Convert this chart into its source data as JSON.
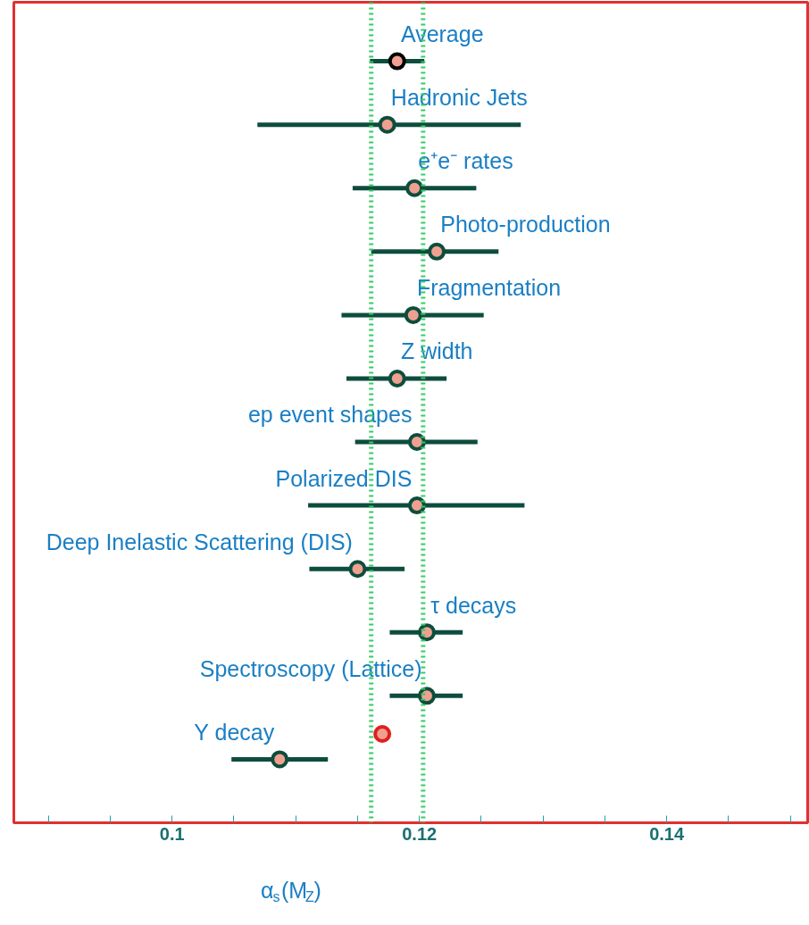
{
  "chart_data": {
    "type": "scatter",
    "orientation": "horizontal",
    "xlabel": "α$_{s}$(M$_{Z}$)",
    "categories": [
      "Average",
      "Hadronic Jets",
      "e⁺e⁻ rates",
      "Photo-production",
      "Fragmentation",
      "Z width",
      "ep event shapes",
      "Polarized DIS",
      "Deep Inelastic Scattering (DIS)",
      "τ decays",
      "Spectroscopy (Lattice)",
      "Υ decay"
    ],
    "series": [
      {
        "color": "#0d4d3d",
        "colors": [
          "#000000",
          "#0d4d3d",
          "#0d4d3d",
          "#0d4d3d",
          "#0d4d3d",
          "#0d4d3d",
          "#0d4d3d",
          "#0d4d3d",
          "#0d4d3d",
          "#0d4d3d",
          "#0d4d3d",
          "#0d4d3d"
        ],
        "values": [
          0.1182,
          0.1174,
          0.1196,
          0.1214,
          0.1195,
          0.1182,
          0.1198,
          0.1198,
          0.115,
          0.1206,
          0.1206,
          0.1087
        ],
        "errors": [
          0.0022,
          [
            0.1069,
            0.1282
          ],
          0.005,
          [
            0.1161,
            0.1264
          ],
          [
            0.1137,
            0.1252
          ],
          [
            0.1141,
            0.1222
          ],
          [
            0.1148,
            0.1247
          ],
          [
            0.111,
            0.1285
          ],
          [
            0.1111,
            0.1188
          ],
          [
            0.1176,
            0.1235
          ],
          [
            0.1176,
            0.1235
          ],
          [
            0.1048,
            0.1126
          ]
        ]
      },
      {
        "color": "#e02020",
        "values": [
          null,
          null,
          null,
          null,
          null,
          null,
          null,
          null,
          null,
          null,
          null,
          0.117
        ]
      }
    ],
    "xlim": [
      0.0872,
      0.1514
    ],
    "xticks": [
      {
        "value": 0.09,
        "label": null
      },
      {
        "value": 0.095,
        "label": null
      },
      0.1,
      {
        "value": 0.105,
        "label": null
      },
      {
        "value": 0.11,
        "label": null
      },
      {
        "value": 0.115,
        "label": null
      },
      0.12,
      {
        "value": 0.125,
        "label": null
      },
      {
        "value": 0.13,
        "label": null
      },
      {
        "value": 0.135,
        "label": null
      },
      0.14,
      {
        "value": 0.145,
        "label": null
      },
      {
        "value": 0.15,
        "label": null
      }
    ],
    "ref_lines": [
      {
        "axis": "x",
        "value": 0.1161,
        "color": "#33cc66",
        "line_style": "dotted"
      },
      {
        "axis": "x",
        "value": 0.1203,
        "color": "#33cc66",
        "line_style": "dotted"
      }
    ],
    "tick_labels": "x",
    "grid": false,
    "marker": "circle"
  }
}
